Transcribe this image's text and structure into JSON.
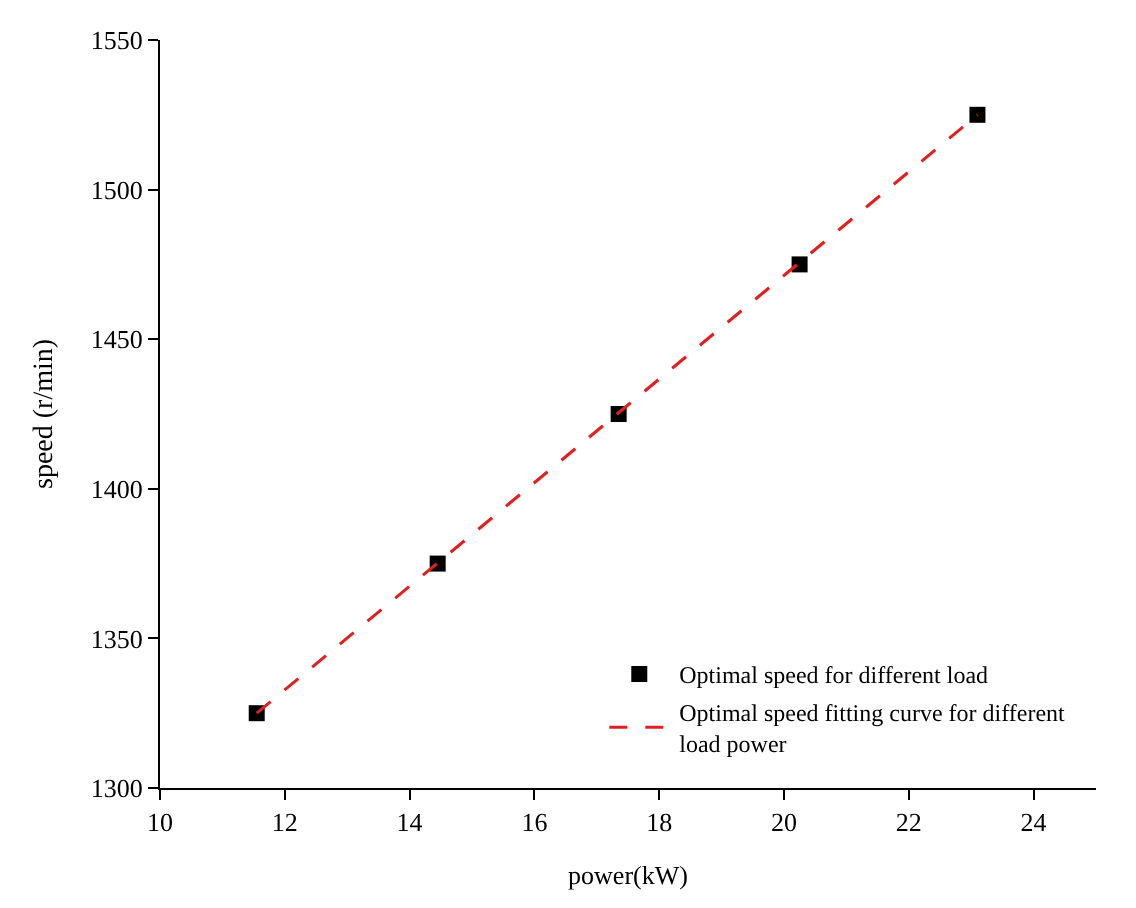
{
  "chart_data": {
    "type": "scatter",
    "xlabel": "power(kW)",
    "ylabel": "speed (r/min)",
    "xlim": [
      10,
      25
    ],
    "xticks": [
      10,
      12,
      14,
      16,
      18,
      20,
      22,
      24
    ],
    "ylim": [
      1300,
      1550
    ],
    "yticks": [
      1300,
      1350,
      1400,
      1450,
      1500,
      1550
    ],
    "legend": "bottom right",
    "series": [
      {
        "name": "Optimal speed for different load",
        "marker": "square",
        "color": "#000000",
        "x": [
          11.55,
          14.45,
          17.35,
          20.25,
          23.1
        ],
        "values": [
          1325,
          1375,
          1425,
          1475,
          1525
        ]
      },
      {
        "name": "Optimal speed fitting curve for different load power",
        "type": "line",
        "line_style": "dashed",
        "color": "#e02020",
        "x": [
          11.55,
          23.1
        ],
        "values": [
          1325,
          1525
        ]
      }
    ]
  }
}
